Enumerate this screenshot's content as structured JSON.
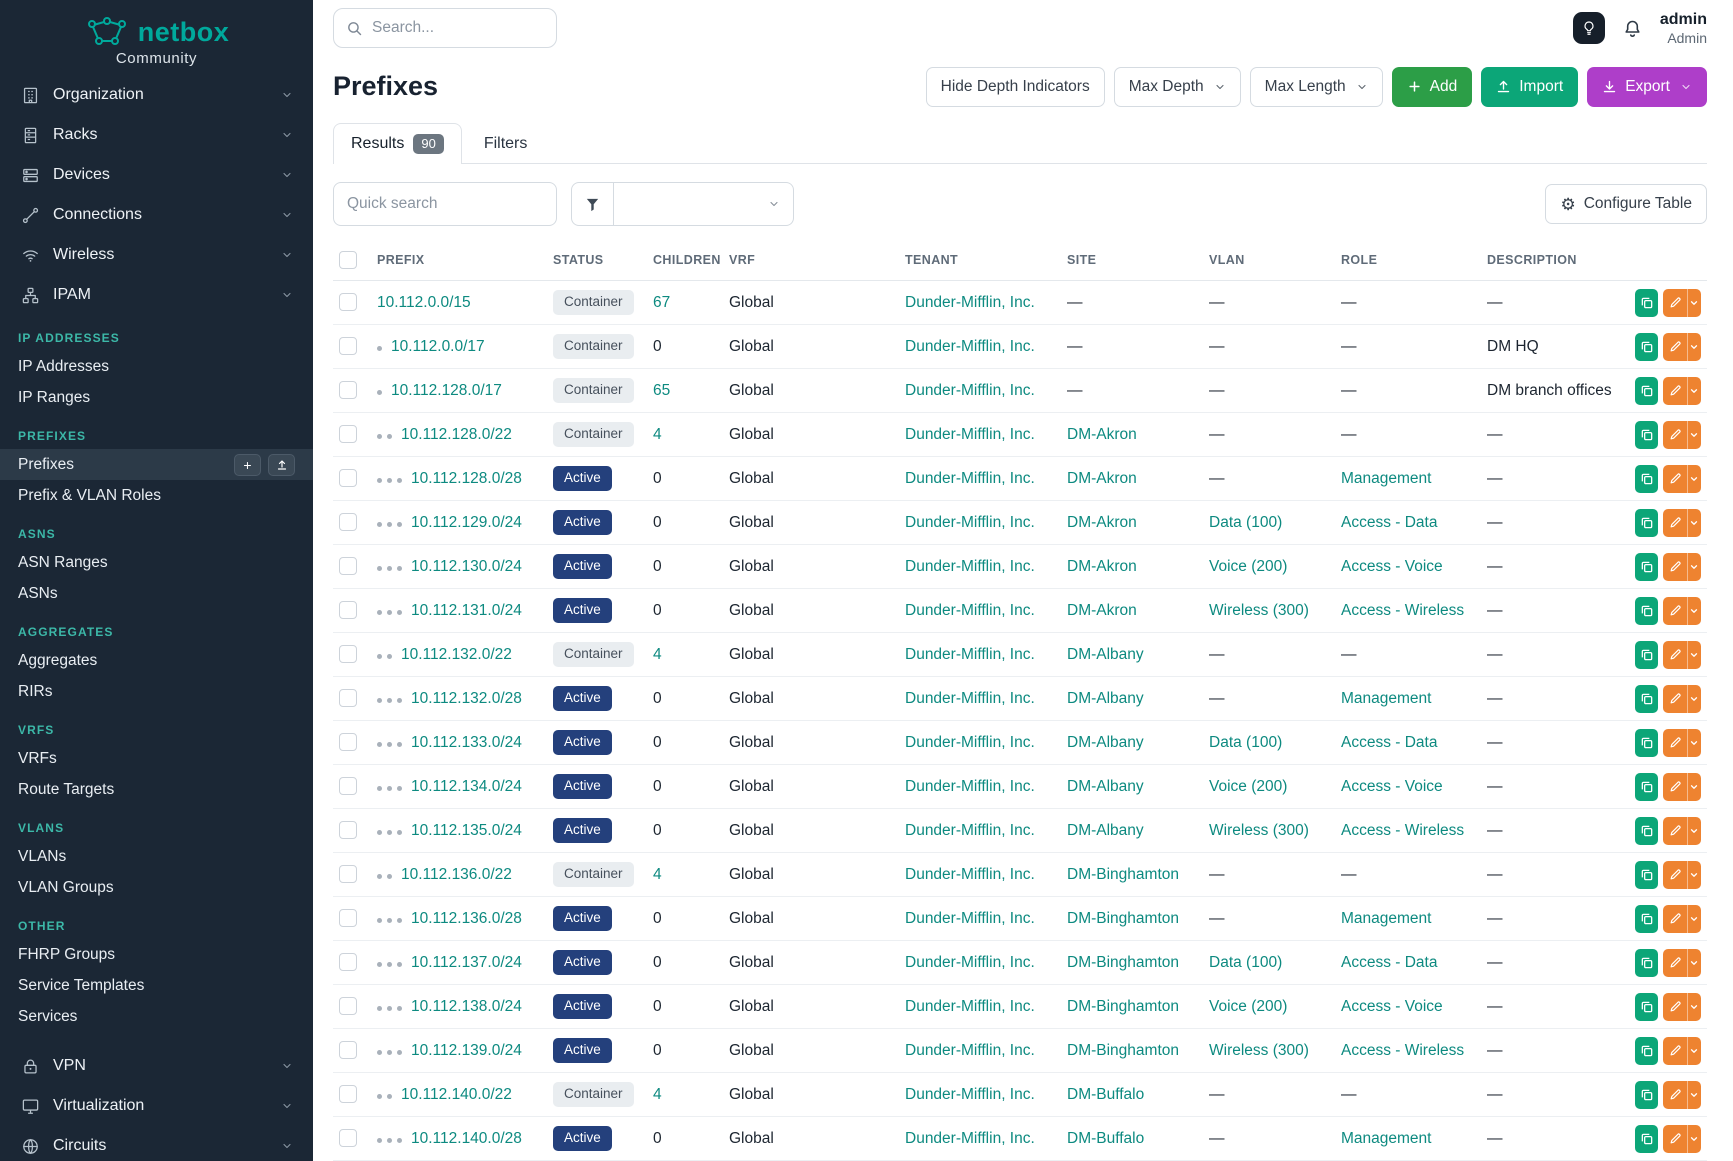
{
  "colors": {
    "brand_teal": "#00a99c",
    "link_teal": "#0d8a80",
    "sidebar_bg": "#1b2735",
    "sidebar_active_bg": "#2c3a48",
    "section_header_teal": "#3cb8a8",
    "active_badge_bg": "#24407c",
    "container_badge_bg": "#e9edf0",
    "add_green": "#2c9e47",
    "import_teal": "#0ca678",
    "export_purple": "#ae3ec9",
    "edit_orange": "#ee8330",
    "copy_teal": "#0ca678"
  },
  "brand": {
    "name": "netbox",
    "subtitle": "Community"
  },
  "topbar": {
    "search_placeholder": "Search...",
    "user_name": "admin",
    "user_role": "Admin"
  },
  "sidebar": {
    "top_items": [
      {
        "label": "Organization",
        "icon": "organization-icon"
      },
      {
        "label": "Racks",
        "icon": "racks-icon"
      },
      {
        "label": "Devices",
        "icon": "devices-icon"
      },
      {
        "label": "Connections",
        "icon": "connections-icon"
      },
      {
        "label": "Wireless",
        "icon": "wireless-icon"
      },
      {
        "label": "IPAM",
        "icon": "ipam-icon"
      }
    ],
    "sections": [
      {
        "header": "IP ADDRESSES",
        "items": [
          {
            "label": "IP Addresses"
          },
          {
            "label": "IP Ranges"
          }
        ]
      },
      {
        "header": "PREFIXES",
        "items": [
          {
            "label": "Prefixes",
            "active": true,
            "quick_actions": true
          },
          {
            "label": "Prefix & VLAN Roles"
          }
        ]
      },
      {
        "header": "ASNS",
        "items": [
          {
            "label": "ASN Ranges"
          },
          {
            "label": "ASNs"
          }
        ]
      },
      {
        "header": "AGGREGATES",
        "items": [
          {
            "label": "Aggregates"
          },
          {
            "label": "RIRs"
          }
        ]
      },
      {
        "header": "VRFS",
        "items": [
          {
            "label": "VRFs"
          },
          {
            "label": "Route Targets"
          }
        ]
      },
      {
        "header": "VLANS",
        "items": [
          {
            "label": "VLANs"
          },
          {
            "label": "VLAN Groups"
          }
        ]
      },
      {
        "header": "OTHER",
        "items": [
          {
            "label": "FHRP Groups"
          },
          {
            "label": "Service Templates"
          },
          {
            "label": "Services"
          }
        ]
      }
    ],
    "bottom_items": [
      {
        "label": "VPN",
        "icon": "vpn-icon"
      },
      {
        "label": "Virtualization",
        "icon": "virtualization-icon"
      },
      {
        "label": "Circuits",
        "icon": "circuits-icon"
      }
    ]
  },
  "page": {
    "title": "Prefixes"
  },
  "header_actions": {
    "hide_depth": "Hide Depth Indicators",
    "max_depth": "Max Depth",
    "max_length": "Max Length",
    "add": "Add",
    "import": "Import",
    "export": "Export"
  },
  "tabs": {
    "results": "Results",
    "results_count": "90",
    "filters": "Filters"
  },
  "toolbar": {
    "quick_search_placeholder": "Quick search",
    "configure_table": "Configure Table"
  },
  "table": {
    "columns": [
      "PREFIX",
      "STATUS",
      "CHILDREN",
      "VRF",
      "TENANT",
      "SITE",
      "VLAN",
      "ROLE",
      "DESCRIPTION"
    ],
    "rows": [
      {
        "depth": 0,
        "prefix": "10.112.0.0/15",
        "status": "Container",
        "children": "67",
        "vrf": "Global",
        "tenant": "Dunder-Mifflin, Inc.",
        "site": "—",
        "vlan": "—",
        "role": "—",
        "description": "—"
      },
      {
        "depth": 1,
        "prefix": "10.112.0.0/17",
        "status": "Container",
        "children": "0",
        "vrf": "Global",
        "tenant": "Dunder-Mifflin, Inc.",
        "site": "—",
        "vlan": "—",
        "role": "—",
        "description": "DM HQ"
      },
      {
        "depth": 1,
        "prefix": "10.112.128.0/17",
        "status": "Container",
        "children": "65",
        "vrf": "Global",
        "tenant": "Dunder-Mifflin, Inc.",
        "site": "—",
        "vlan": "—",
        "role": "—",
        "description": "DM branch offices"
      },
      {
        "depth": 2,
        "prefix": "10.112.128.0/22",
        "status": "Container",
        "children": "4",
        "vrf": "Global",
        "tenant": "Dunder-Mifflin, Inc.",
        "site": "DM-Akron",
        "vlan": "—",
        "role": "—",
        "description": "—"
      },
      {
        "depth": 3,
        "prefix": "10.112.128.0/28",
        "status": "Active",
        "children": "0",
        "vrf": "Global",
        "tenant": "Dunder-Mifflin, Inc.",
        "site": "DM-Akron",
        "vlan": "—",
        "role": "Management",
        "description": "—"
      },
      {
        "depth": 3,
        "prefix": "10.112.129.0/24",
        "status": "Active",
        "children": "0",
        "vrf": "Global",
        "tenant": "Dunder-Mifflin, Inc.",
        "site": "DM-Akron",
        "vlan": "Data (100)",
        "role": "Access - Data",
        "description": "—"
      },
      {
        "depth": 3,
        "prefix": "10.112.130.0/24",
        "status": "Active",
        "children": "0",
        "vrf": "Global",
        "tenant": "Dunder-Mifflin, Inc.",
        "site": "DM-Akron",
        "vlan": "Voice (200)",
        "role": "Access - Voice",
        "description": "—"
      },
      {
        "depth": 3,
        "prefix": "10.112.131.0/24",
        "status": "Active",
        "children": "0",
        "vrf": "Global",
        "tenant": "Dunder-Mifflin, Inc.",
        "site": "DM-Akron",
        "vlan": "Wireless (300)",
        "role": "Access - Wireless",
        "description": "—"
      },
      {
        "depth": 2,
        "prefix": "10.112.132.0/22",
        "status": "Container",
        "children": "4",
        "vrf": "Global",
        "tenant": "Dunder-Mifflin, Inc.",
        "site": "DM-Albany",
        "vlan": "—",
        "role": "—",
        "description": "—"
      },
      {
        "depth": 3,
        "prefix": "10.112.132.0/28",
        "status": "Active",
        "children": "0",
        "vrf": "Global",
        "tenant": "Dunder-Mifflin, Inc.",
        "site": "DM-Albany",
        "vlan": "—",
        "role": "Management",
        "description": "—"
      },
      {
        "depth": 3,
        "prefix": "10.112.133.0/24",
        "status": "Active",
        "children": "0",
        "vrf": "Global",
        "tenant": "Dunder-Mifflin, Inc.",
        "site": "DM-Albany",
        "vlan": "Data (100)",
        "role": "Access - Data",
        "description": "—"
      },
      {
        "depth": 3,
        "prefix": "10.112.134.0/24",
        "status": "Active",
        "children": "0",
        "vrf": "Global",
        "tenant": "Dunder-Mifflin, Inc.",
        "site": "DM-Albany",
        "vlan": "Voice (200)",
        "role": "Access - Voice",
        "description": "—"
      },
      {
        "depth": 3,
        "prefix": "10.112.135.0/24",
        "status": "Active",
        "children": "0",
        "vrf": "Global",
        "tenant": "Dunder-Mifflin, Inc.",
        "site": "DM-Albany",
        "vlan": "Wireless (300)",
        "role": "Access - Wireless",
        "description": "—"
      },
      {
        "depth": 2,
        "prefix": "10.112.136.0/22",
        "status": "Container",
        "children": "4",
        "vrf": "Global",
        "tenant": "Dunder-Mifflin, Inc.",
        "site": "DM-Binghamton",
        "vlan": "—",
        "role": "—",
        "description": "—"
      },
      {
        "depth": 3,
        "prefix": "10.112.136.0/28",
        "status": "Active",
        "children": "0",
        "vrf": "Global",
        "tenant": "Dunder-Mifflin, Inc.",
        "site": "DM-Binghamton",
        "vlan": "—",
        "role": "Management",
        "description": "—"
      },
      {
        "depth": 3,
        "prefix": "10.112.137.0/24",
        "status": "Active",
        "children": "0",
        "vrf": "Global",
        "tenant": "Dunder-Mifflin, Inc.",
        "site": "DM-Binghamton",
        "vlan": "Data (100)",
        "role": "Access - Data",
        "description": "—"
      },
      {
        "depth": 3,
        "prefix": "10.112.138.0/24",
        "status": "Active",
        "children": "0",
        "vrf": "Global",
        "tenant": "Dunder-Mifflin, Inc.",
        "site": "DM-Binghamton",
        "vlan": "Voice (200)",
        "role": "Access - Voice",
        "description": "—"
      },
      {
        "depth": 3,
        "prefix": "10.112.139.0/24",
        "status": "Active",
        "children": "0",
        "vrf": "Global",
        "tenant": "Dunder-Mifflin, Inc.",
        "site": "DM-Binghamton",
        "vlan": "Wireless (300)",
        "role": "Access - Wireless",
        "description": "—"
      },
      {
        "depth": 2,
        "prefix": "10.112.140.0/22",
        "status": "Container",
        "children": "4",
        "vrf": "Global",
        "tenant": "Dunder-Mifflin, Inc.",
        "site": "DM-Buffalo",
        "vlan": "—",
        "role": "—",
        "description": "—"
      },
      {
        "depth": 3,
        "prefix": "10.112.140.0/28",
        "status": "Active",
        "children": "0",
        "vrf": "Global",
        "tenant": "Dunder-Mifflin, Inc.",
        "site": "DM-Buffalo",
        "vlan": "—",
        "role": "Management",
        "description": "—"
      }
    ]
  }
}
